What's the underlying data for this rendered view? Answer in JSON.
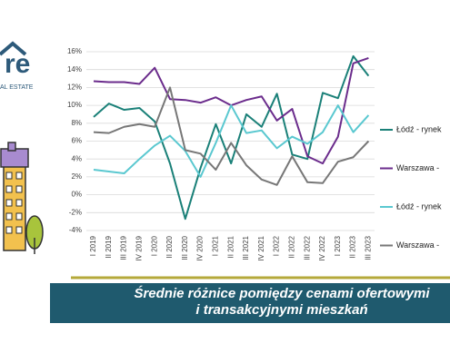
{
  "logo": {
    "text": "re",
    "tagline": "AL ESTATE"
  },
  "chart_data": {
    "type": "line",
    "title": [
      "Średnie różnice pomiędzy cenami ofertowymi",
      "i transakcyjnymi mieszkań"
    ],
    "categories": [
      "I 2019",
      "II 2019",
      "III 2019",
      "IV 2019",
      "I 2020",
      "II 2020",
      "III 2020",
      "IV 2020",
      "I 2021",
      "II 2021",
      "III 2021",
      "IV 2021",
      "I 2022",
      "II 2022",
      "III 2022",
      "IV 2022",
      "I 2023",
      "II 2023",
      "III 2023"
    ],
    "series": [
      {
        "name": "Łódź - rynek",
        "color": "#1a8078",
        "values": [
          8.7,
          10.2,
          9.5,
          9.7,
          8.2,
          3.5,
          -2.7,
          3.0,
          7.9,
          3.5,
          9.0,
          7.6,
          11.3,
          4.5,
          4.0,
          11.4,
          10.8,
          15.5,
          13.3
        ]
      },
      {
        "name": "Warszawa -",
        "color": "#6b2c8c",
        "values": [
          12.7,
          12.6,
          12.6,
          12.4,
          14.2,
          10.7,
          10.6,
          10.3,
          10.9,
          10.0,
          10.6,
          11.0,
          8.3,
          9.6,
          4.3,
          3.5,
          6.5,
          14.7,
          15.3
        ]
      },
      {
        "name": "Łódź - rynek",
        "color": "#5ac8d0",
        "values": [
          2.8,
          2.6,
          2.4,
          4.0,
          5.5,
          6.6,
          4.9,
          2.0,
          5.8,
          10.0,
          6.9,
          7.2,
          5.2,
          6.5,
          5.7,
          7.0,
          10.0,
          7.0,
          8.9
        ]
      },
      {
        "name": "Warszawa -",
        "color": "#777777",
        "values": [
          7.0,
          6.9,
          7.6,
          7.9,
          7.6,
          12.0,
          5.0,
          4.6,
          2.8,
          5.8,
          3.3,
          1.7,
          1.1,
          4.3,
          1.4,
          1.3,
          3.7,
          4.2,
          6.0
        ]
      }
    ],
    "ylim": [
      -4,
      16
    ],
    "yticks": [
      {
        "value": -4,
        "label": "-4%"
      },
      {
        "value": -2,
        "label": "-2%"
      },
      {
        "value": 0,
        "label": "0%"
      },
      {
        "value": 2,
        "label": "2%"
      },
      {
        "value": 4,
        "label": "4%"
      },
      {
        "value": 6,
        "label": "6%"
      },
      {
        "value": 8,
        "label": "8%"
      },
      {
        "value": 10,
        "label": "10%"
      },
      {
        "value": 12,
        "label": "12%"
      },
      {
        "value": 14,
        "label": "14%"
      },
      {
        "value": 16,
        "label": "16%"
      }
    ],
    "grid": true
  }
}
